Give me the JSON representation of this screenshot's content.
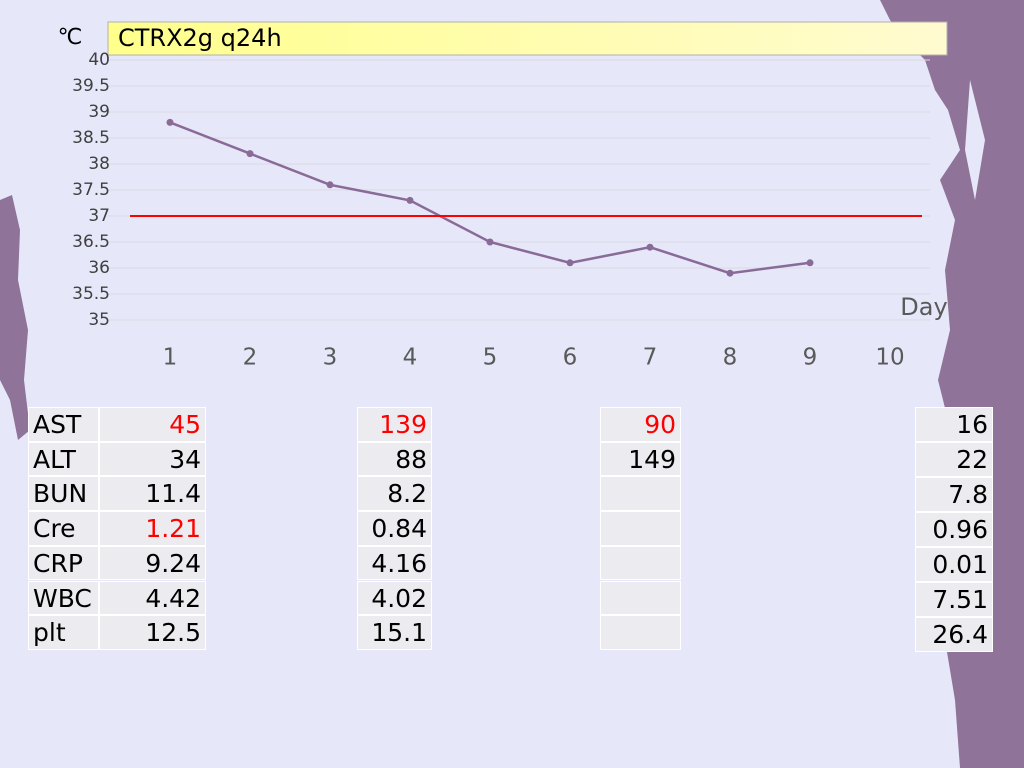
{
  "chart_data": {
    "type": "line",
    "title": "CTRX2g q24h",
    "y_label": "℃",
    "x_label": "Day",
    "x": [
      1,
      2,
      3,
      4,
      5,
      6,
      7,
      8,
      9,
      10
    ],
    "values": [
      38.8,
      38.2,
      37.6,
      37.3,
      36.5,
      36.1,
      36.4,
      35.9,
      36.1,
      null
    ],
    "color": "#8a6a97",
    "xlim": [
      0.5,
      10.5
    ],
    "xticks": [
      1,
      2,
      3,
      4,
      5,
      6,
      7,
      8,
      9,
      10
    ],
    "ylim": [
      35,
      40
    ],
    "yticks": [
      35,
      35.5,
      36,
      36.5,
      37,
      37.5,
      38,
      38.5,
      39,
      39.5,
      40
    ],
    "grid": true,
    "reference_line": {
      "value": 37,
      "color": "#ff0000"
    }
  },
  "tables": [
    {
      "rows": [
        [
          "AST",
          "45"
        ],
        [
          "ALT",
          "34"
        ],
        [
          "BUN",
          "11.4"
        ],
        [
          "Cre",
          "1.21"
        ],
        [
          "CRP",
          "9.24"
        ],
        [
          "WBC",
          "4.42"
        ],
        [
          "plt",
          "12.5"
        ]
      ],
      "highlight_rows": [
        0,
        3
      ],
      "highlight_color": "#ff0000"
    },
    {
      "rows": [
        [
          "139"
        ],
        [
          "88"
        ],
        [
          "8.2"
        ],
        [
          "0.84"
        ],
        [
          "4.16"
        ],
        [
          "4.02"
        ],
        [
          "15.1"
        ]
      ],
      "highlight_rows": [
        0
      ],
      "highlight_color": "#ff0000"
    },
    {
      "rows": [
        [
          "90"
        ],
        [
          "149"
        ],
        [
          null
        ],
        [
          null
        ],
        [
          null
        ],
        [
          null
        ],
        [
          null
        ]
      ],
      "highlight_rows": [
        0
      ],
      "highlight_color": "#ff0000"
    },
    {
      "rows": [
        [
          "16"
        ],
        [
          "22"
        ],
        [
          "7.8"
        ],
        [
          "0.96"
        ],
        [
          "0.01"
        ],
        [
          "7.51"
        ],
        [
          "26.4"
        ]
      ],
      "highlight_rows": [],
      "highlight_color": "#ff0000"
    }
  ]
}
